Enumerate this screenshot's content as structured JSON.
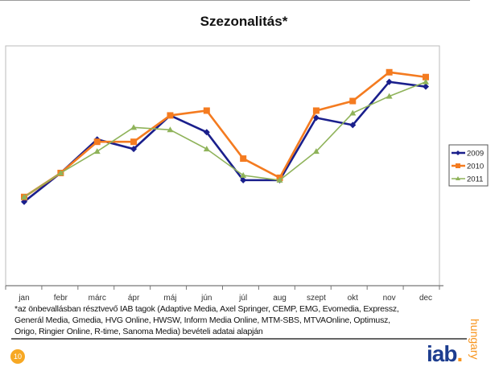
{
  "title": "Szezonalitás*",
  "chart_data": {
    "type": "line",
    "title": "",
    "xlabel": "",
    "ylabel": "",
    "categories": [
      "jan",
      "febr",
      "márc",
      "ápr",
      "máj",
      "jún",
      "júl",
      "aug",
      "szept",
      "okt",
      "nov",
      "dec"
    ],
    "ylim": [
      0,
      100
    ],
    "y_axis_labels_shown": false,
    "grid": false,
    "legend_position": "right",
    "series": [
      {
        "name": "2009",
        "color": "#1a1f8c",
        "marker": "diamond",
        "values": [
          35,
          47,
          61,
          57,
          71,
          64,
          44,
          44,
          70,
          67,
          85,
          83
        ]
      },
      {
        "name": "2010",
        "color": "#f47b20",
        "marker": "square",
        "values": [
          37,
          47,
          60,
          60,
          71,
          73,
          53,
          45,
          73,
          77,
          89,
          87
        ]
      },
      {
        "name": "2011",
        "color": "#8fb35a",
        "marker": "triangle",
        "values": [
          37,
          47,
          56,
          66,
          65,
          57,
          46,
          44,
          56,
          72,
          79,
          85
        ]
      }
    ]
  },
  "footnote": [
    "*az önbevallásban résztvevő IAB tagok (Adaptive Media, Axel Springer, CEMP, EMG, Evomedia, Expressz,",
    "Generál Media, Gmedia, HVG Online, HWSW, Inform Media Online, MTM-SBS, MTVAOnline, Optimusz,",
    "Origo, Ringier Online, R-time, Sanoma Media) bevételi adatai alapján"
  ],
  "page_number": "10",
  "logo": {
    "text": "iab",
    "subtext": "hungary",
    "dot": "."
  }
}
